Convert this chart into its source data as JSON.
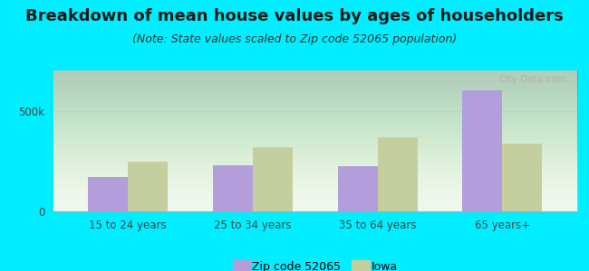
{
  "title": "Breakdown of mean house values by ages of householders",
  "subtitle": "(Note: State values scaled to Zip code 52065 population)",
  "categories": [
    "15 to 24 years",
    "25 to 34 years",
    "35 to 64 years",
    "65 years+"
  ],
  "zip_values": [
    170000,
    230000,
    225000,
    600000
  ],
  "iowa_values": [
    245000,
    320000,
    370000,
    335000
  ],
  "zip_color": "#b39ddb",
  "iowa_color": "#c5ce9e",
  "ylim": [
    0,
    700000
  ],
  "yticks": [
    0,
    500000
  ],
  "ytick_labels": [
    "0",
    "500k"
  ],
  "background_color": "#00eeff",
  "legend_zip": "Zip code 52065",
  "legend_iowa": "Iowa",
  "bar_width": 0.32,
  "title_fontsize": 13,
  "subtitle_fontsize": 9,
  "watermark": "City-Data.com"
}
